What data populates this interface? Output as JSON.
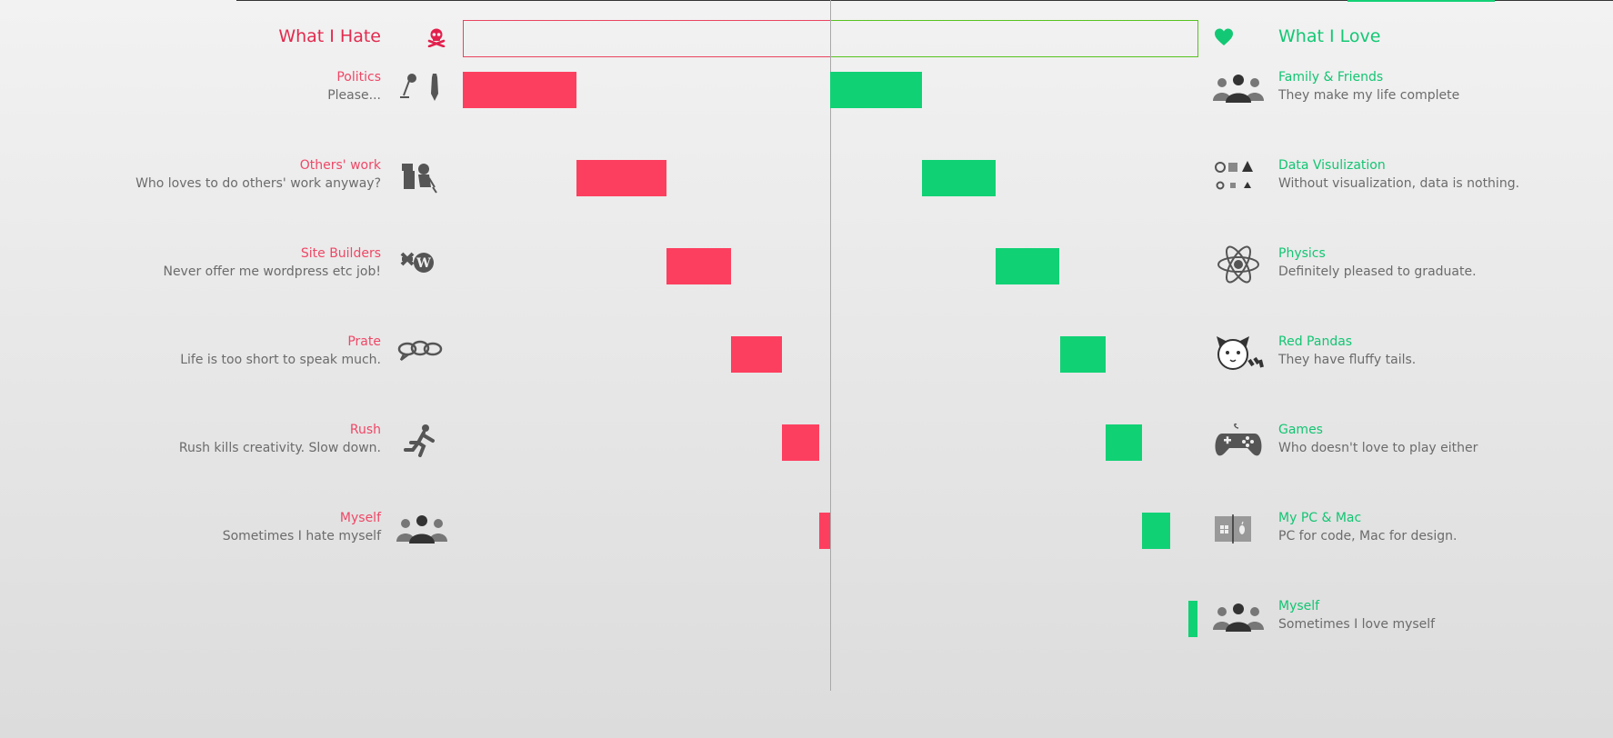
{
  "colors": {
    "hate": "#fd3f5f",
    "love": "#11d175",
    "hate_title": "#e22a4e",
    "love_title": "#12c874"
  },
  "hate": {
    "title": "What I Hate",
    "header_icon": "skull-crossbones-icon",
    "items": [
      {
        "title": "Politics",
        "subtitle": "Please...",
        "icon": "microphone-tie-icon"
      },
      {
        "title": "Others' work",
        "subtitle": "Who loves to do others' work anyway?",
        "icon": "tired-worker-icon"
      },
      {
        "title": "Site Builders",
        "subtitle": "Never offer me wordpress etc job!",
        "icon": "joomla-wordpress-icon"
      },
      {
        "title": "Prate",
        "subtitle": "Life is too short to speak much.",
        "icon": "speech-bubbles-icon"
      },
      {
        "title": "Rush",
        "subtitle": "Rush kills creativity. Slow down.",
        "icon": "running-man-icon"
      },
      {
        "title": "Myself",
        "subtitle": "Sometimes I hate myself",
        "icon": "group-icon"
      }
    ]
  },
  "love": {
    "title": "What I Love",
    "header_icon": "heart-icon",
    "items": [
      {
        "title": "Family & Friends",
        "subtitle": "They make my life complete",
        "icon": "group-icon"
      },
      {
        "title": "Data Visulization",
        "subtitle": "Without visualization, data is nothing.",
        "icon": "shapes-icon"
      },
      {
        "title": "Physics",
        "subtitle": "Definitely pleased to graduate.",
        "icon": "atom-icon"
      },
      {
        "title": "Red Pandas",
        "subtitle": "They have fluffy tails.",
        "icon": "red-panda-icon"
      },
      {
        "title": "Games",
        "subtitle": "Who doesn't love to play either",
        "icon": "gamepad-icon"
      },
      {
        "title": "My PC & Mac",
        "subtitle": "PC for code, Mac for design.",
        "icon": "windows-apple-icon"
      },
      {
        "title": "Myself",
        "subtitle": "Sometimes I love myself",
        "icon": "group-icon"
      }
    ]
  },
  "chart_data": {
    "type": "bar",
    "series": [
      {
        "side": "hate",
        "ranges": [
          [
            -1.0,
            -0.69
          ],
          [
            -0.69,
            -0.445
          ],
          [
            -0.445,
            -0.27
          ],
          [
            -0.27,
            -0.13
          ],
          [
            -0.13,
            -0.03
          ],
          [
            -0.03,
            0.0
          ]
        ]
      },
      {
        "side": "love",
        "ranges": [
          [
            0.25,
            0.0
          ],
          [
            0.45,
            0.25
          ],
          [
            0.625,
            0.45
          ],
          [
            0.75,
            0.625
          ],
          [
            0.85,
            0.75
          ],
          [
            0.925,
            0.85
          ],
          [
            1.0,
            0.975
          ]
        ]
      }
    ],
    "xlim": [
      -1,
      1
    ]
  }
}
